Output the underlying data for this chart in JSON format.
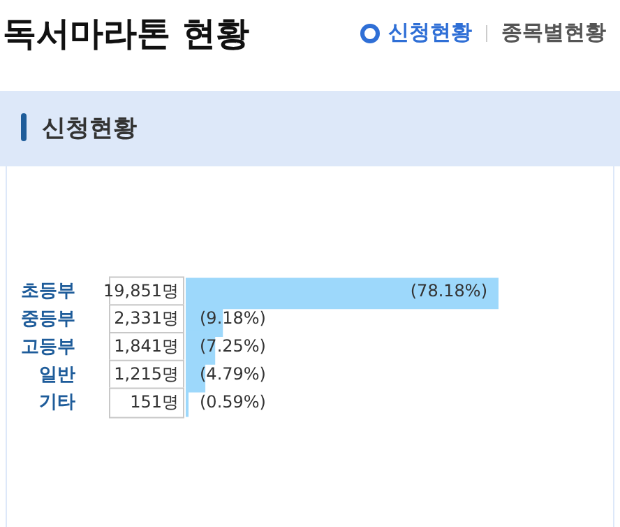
{
  "chart_data": {
    "type": "bar",
    "orientation": "horizontal",
    "title": "독서마라톤 현황",
    "subtitle": "신청현황",
    "annotations": [
      "신청현황",
      "종목별현황",
      "19,851명",
      "2,331명",
      "1,841명",
      "1,215명",
      "151명"
    ],
    "categories": [
      "초등부",
      "중등부",
      "고등부",
      "일반",
      "기타"
    ],
    "values": [
      78.18,
      9.18,
      7.25,
      4.79,
      0.59
    ],
    "value_labels": [
      "(78.18%)",
      "(9.18%)",
      "(7.25%)",
      "(4.79%)",
      "(0.59%)"
    ],
    "color": "#9dd8fb",
    "tick_labels": "y",
    "grid": false
  }
}
